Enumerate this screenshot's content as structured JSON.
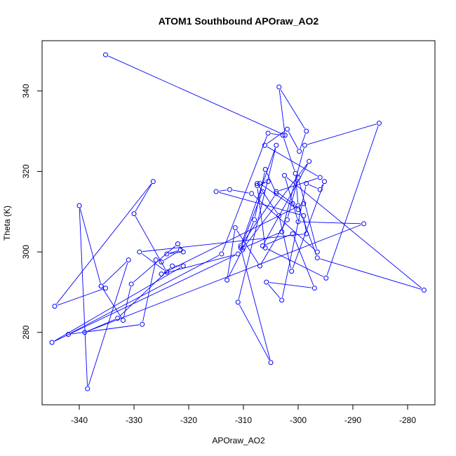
{
  "chart_data": {
    "type": "line",
    "title": "ATOM1 Southbound APOraw_AO2",
    "xlabel": "APOraw_AO2",
    "ylabel": "Theta (K)",
    "xlim": [
      -346.8,
      -275.0
    ],
    "ylim": [
      262.0,
      352.5
    ],
    "x_ticks": [
      -340,
      -330,
      -320,
      -310,
      -300,
      -290,
      -280
    ],
    "y_ticks": [
      280,
      300,
      320,
      340
    ],
    "x_tick_labels": [
      "-340",
      "-330",
      "-320",
      "-310",
      "-300",
      "-290",
      "-280"
    ],
    "y_tick_labels": [
      "280",
      "300",
      "320",
      "340"
    ],
    "series_color": "#0000ff",
    "series": [
      {
        "marker": "open-circle",
        "x": [
          -335.2,
          -302.4,
          -303.5,
          -298.5,
          -299.8,
          -302.0,
          -306.1,
          -296.0,
          -304.0,
          -301.0,
          -300.0,
          -307.0,
          -305.5,
          -307.5,
          -306.0,
          -294.9,
          -285.2,
          -298.8,
          -303.0,
          -310.0,
          -298.0,
          -306.5,
          -301.0,
          -297.0,
          -305.8,
          -303.0,
          -298.5,
          -296.0,
          -295.2,
          -301.2,
          -303.5,
          -307.5,
          -306.5,
          -310.5,
          -305.0,
          -311.0,
          -304.0,
          -310.5,
          -304.0,
          -306.0,
          -308.0,
          -310.2,
          -313.0,
          -311.5,
          -307.0,
          -302.0,
          -300.0,
          -296.5,
          -308.5,
          -312.5,
          -315.0,
          -299.0,
          -298.5,
          -329.0,
          -324.0,
          -330.0,
          -326.5,
          -344.5,
          -335.2,
          -336.0,
          -331.0,
          -338.5,
          -340.0,
          -336.0,
          -332.0,
          -330.5,
          -322.0,
          -321.0,
          -324.0,
          -321.5,
          -325.0,
          -326.0,
          -328.5,
          -342.0,
          -314.0,
          -305.5,
          -302.8,
          -300.5,
          -300.0,
          -296.5,
          -277.0,
          -302.5,
          -300.0,
          -288.0,
          -339.0,
          -333.0,
          -323.0,
          -321.0,
          -345.0,
          -311.0,
          -325.0,
          -299.0
        ],
        "y": [
          349.0,
          329.0,
          341.0,
          330.0,
          325.0,
          330.5,
          326.5,
          318.5,
          315.0,
          312.0,
          310.5,
          317.0,
          317.5,
          316.5,
          301.0,
          293.5,
          332.0,
          326.5,
          305.0,
          301.0,
          322.5,
          301.5,
          304.5,
          291.0,
          292.5,
          288.0,
          317.0,
          315.5,
          317.5,
          295.2,
          309.0,
          317.0,
          315.0,
          301.0,
          272.5,
          287.5,
          326.5,
          301.5,
          314.5,
          320.5,
          308.0,
          300.5,
          293.0,
          306.0,
          296.5,
          308.0,
          318.5,
          300.0,
          314.5,
          315.5,
          315.0,
          309.0,
          304.5,
          300.0,
          295.0,
          309.5,
          317.5,
          286.5,
          291.0,
          291.5,
          298.0,
          266.0,
          311.5,
          291.5,
          283.0,
          292.0,
          302.0,
          300.0,
          299.5,
          300.5,
          297.5,
          298.0,
          282.0,
          279.5,
          299.5,
          329.5,
          329.0,
          319.5,
          311.5,
          298.5,
          290.5,
          319.0,
          307.5,
          307.0,
          280.0,
          283.5,
          296.5,
          296.5,
          277.5,
          299.5,
          294.5,
          312.0
        ]
      }
    ]
  }
}
